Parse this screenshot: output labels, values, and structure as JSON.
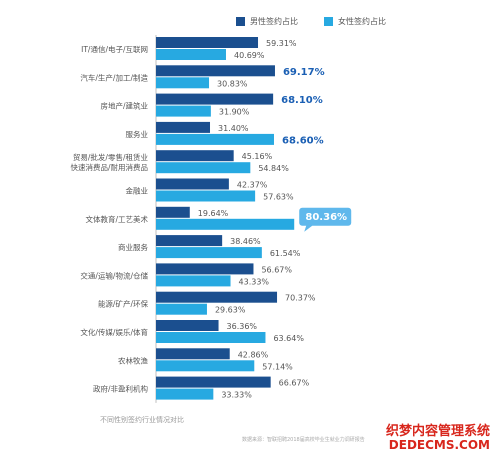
{
  "legend": [
    {
      "name": "男性签约占比",
      "color": "#1b4f8f"
    },
    {
      "name": "女性签约占比",
      "color": "#27a9e1"
    }
  ],
  "caption": "不同性别签约行业情况对比",
  "source": "数据来源：智联招聘2018届高校毕业生就业力调研报告",
  "watermark": {
    "cn": "织梦内容管理系统",
    "en": "DEDECMS.COM"
  },
  "colors": {
    "male": "#1b4f8f",
    "female": "#27a9e1",
    "highlight": "#1a5fb4",
    "callout": "#5fb8ec"
  },
  "chart_data": {
    "type": "bar",
    "orientation": "horizontal",
    "categories": [
      [
        "IT/通信/电子/互联网"
      ],
      [
        "汽车/生产/加工/制造"
      ],
      [
        "房地产/建筑业"
      ],
      [
        "服务业"
      ],
      [
        "贸易/批发/零售/租赁业",
        "快速消费品/耐用消费品"
      ],
      [
        "金融业"
      ],
      [
        "文体教育/工艺美术"
      ],
      [
        "商业服务"
      ],
      [
        "交通/运输/物流/仓储"
      ],
      [
        "能源/矿产/环保"
      ],
      [
        "文化/传媒/娱乐/体育"
      ],
      [
        "农林牧渔"
      ],
      [
        "政府/非盈利机构"
      ]
    ],
    "series": [
      {
        "name": "男性签约占比",
        "values": [
          59.31,
          69.17,
          68.1,
          31.4,
          45.16,
          42.37,
          19.64,
          38.46,
          56.67,
          70.37,
          36.36,
          42.86,
          66.67
        ],
        "labels": [
          "59.31%",
          "69.17%",
          "68.10%",
          "31.40%",
          "45.16%",
          "42.37%",
          "19.64%",
          "38.46%",
          "56.67%",
          "70.37%",
          "36.36%",
          "42.86%",
          "66.67%"
        ]
      },
      {
        "name": "女性签约占比",
        "values": [
          40.69,
          30.83,
          31.9,
          68.6,
          54.84,
          57.63,
          80.36,
          61.54,
          43.33,
          29.63,
          63.64,
          57.14,
          33.33
        ],
        "labels": [
          "40.69%",
          "30.83%",
          "31.90%",
          "68.60%",
          "54.84%",
          "57.63%",
          "80.36%",
          "61.54%",
          "43.33%",
          "29.63%",
          "63.64%",
          "57.14%",
          "33.33%"
        ]
      }
    ],
    "emphasis": [
      {
        "series": 0,
        "index": 1,
        "style": "bold"
      },
      {
        "series": 0,
        "index": 2,
        "style": "bold"
      },
      {
        "series": 1,
        "index": 3,
        "style": "bold"
      },
      {
        "series": 1,
        "index": 6,
        "style": "callout"
      }
    ],
    "xlim": [
      0,
      100
    ],
    "legend_position": "top-right",
    "grid": false
  }
}
